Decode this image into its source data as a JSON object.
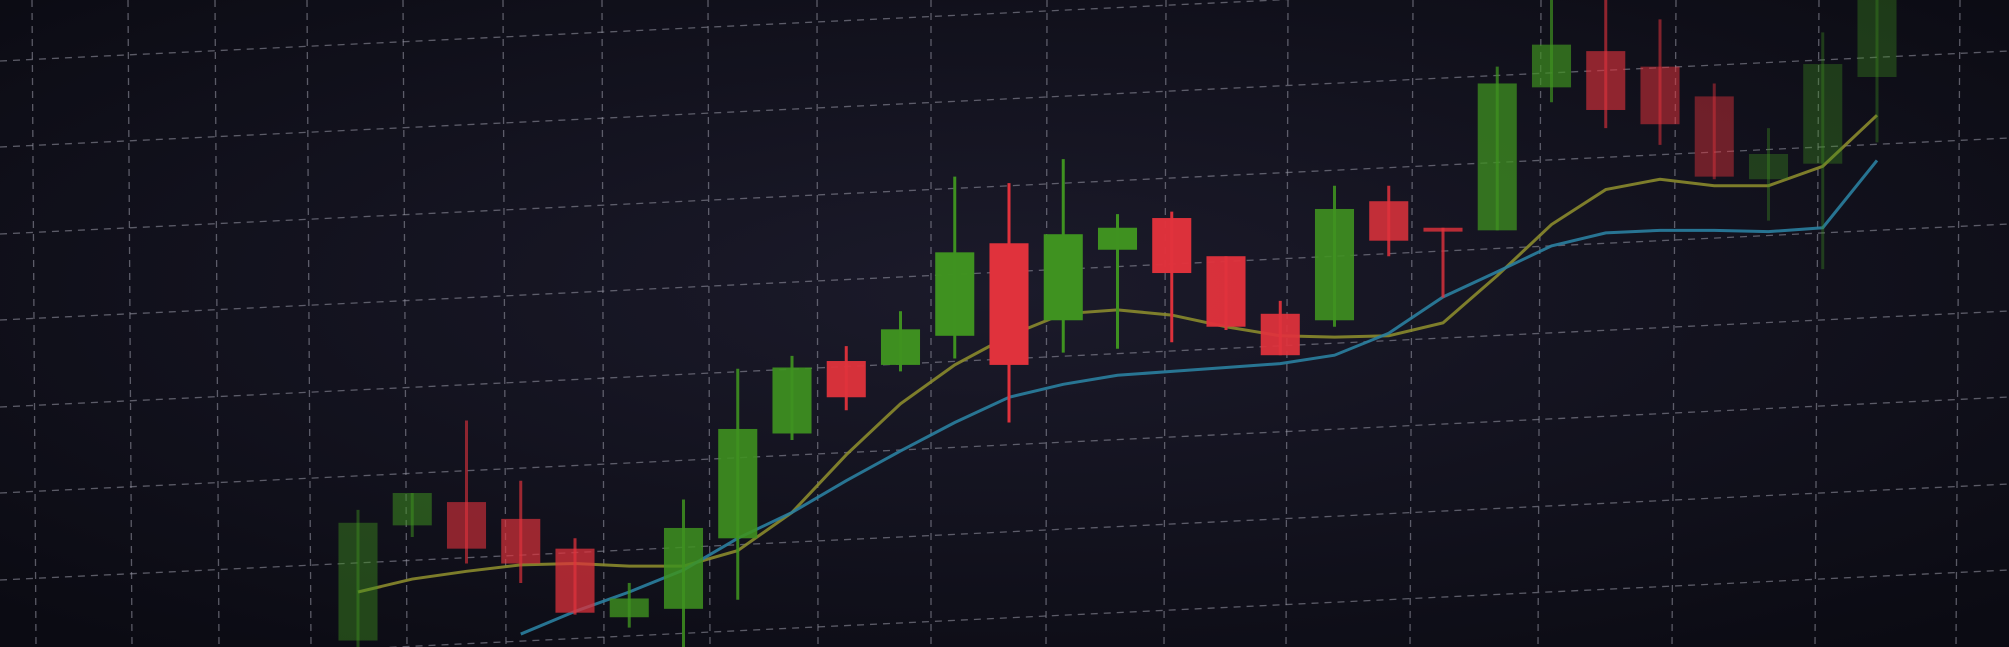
{
  "chart_data": {
    "type": "candlestick",
    "categories": [
      null,
      null,
      null,
      null,
      null,
      null,
      null,
      null,
      null,
      null,
      null,
      null,
      null,
      null,
      null,
      null,
      null,
      null,
      null,
      null,
      null,
      null,
      null,
      null,
      null,
      null,
      null,
      null,
      null
    ],
    "open": [
      1,
      18.8,
      22.4,
      19.8,
      15.2,
      4.6,
      5.9,
      16.8,
      33,
      44.2,
      43.6,
      48.1,
      62.4,
      50.5,
      61.4,
      66.3,
      60.4,
      51.5,
      50.5,
      68.9,
      64.8,
      64.4,
      86.5,
      92.1,
      89.7,
      85.1,
      72.3,
      74.7,
      88.1
    ],
    "high": [
      21.2,
      23.8,
      35,
      25.7,
      16.8,
      9.9,
      22.8,
      43,
      45,
      46.5,
      51.9,
      72.7,
      71.7,
      75.4,
      66.9,
      67.3,
      60.4,
      53.5,
      71.3,
      71.3,
      64.8,
      89.7,
      100,
      100,
      97,
      87.1,
      80.2,
      95,
      100
    ],
    "low": [
      0,
      17,
      12.9,
      9.9,
      5,
      3,
      0,
      7.3,
      32,
      36.6,
      42.6,
      44.6,
      34.7,
      45.5,
      46.1,
      47.1,
      49,
      45.1,
      49.5,
      60.4,
      54,
      64.4,
      84.2,
      80.2,
      77.6,
      72.3,
      65.9,
      58.4,
      78
    ],
    "close": [
      19.2,
      23.8,
      15.2,
      12.9,
      5.3,
      7.5,
      18.4,
      33.7,
      43.2,
      38.6,
      49.1,
      61,
      43.6,
      63.8,
      64.8,
      57.8,
      49.5,
      45.1,
      67.7,
      62.8,
      64.2,
      87.1,
      93.1,
      83,
      80.8,
      72.7,
      76.2,
      90.1,
      100
    ],
    "up_color": "#3f9220",
    "down_color": "#e0323c",
    "lines": [
      {
        "color": "#8a8a2c",
        "values": [
          8.5,
          10.5,
          11.7,
          12.7,
          12.9,
          12.5,
          12.5,
          14.9,
          20.8,
          29.7,
          37.6,
          43.6,
          48.1,
          51.5,
          52.1,
          51.3,
          49.5,
          48.1,
          47.9,
          48.1,
          50.1,
          57.4,
          65.3,
          70.7,
          72.3,
          71.3,
          71.3,
          74.3,
          82.2
        ]
      },
      {
        "color": "#2a7fa0",
        "values": [
          null,
          null,
          null,
          2,
          5.5,
          8.5,
          11.9,
          16.8,
          20.8,
          25.7,
          30.3,
          34.7,
          38.6,
          40.6,
          42,
          42.6,
          43.2,
          43.8,
          45.1,
          48.5,
          54.1,
          58,
          62,
          64,
          64.4,
          64.4,
          64.2,
          64.8,
          75.2
        ]
      }
    ],
    "ylim": [
      0,
      100
    ]
  }
}
